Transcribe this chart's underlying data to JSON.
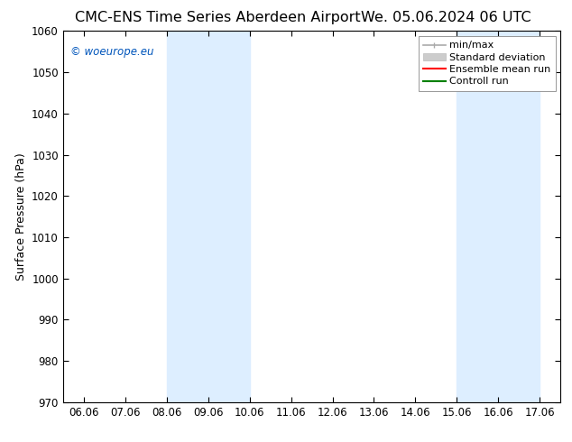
{
  "title_left": "CMC-ENS Time Series Aberdeen Airport",
  "title_right": "We. 05.06.2024 06 UTC",
  "ylabel": "Surface Pressure (hPa)",
  "ylim": [
    970,
    1060
  ],
  "yticks": [
    970,
    980,
    990,
    1000,
    1010,
    1020,
    1030,
    1040,
    1050,
    1060
  ],
  "xtick_labels": [
    "06.06",
    "07.06",
    "08.06",
    "09.06",
    "10.06",
    "11.06",
    "12.06",
    "13.06",
    "14.06",
    "15.06",
    "16.06",
    "17.06"
  ],
  "shaded_regions": [
    {
      "xmin": 2.0,
      "xmax": 4.0
    },
    {
      "xmin": 9.0,
      "xmax": 11.0
    }
  ],
  "shaded_color": "#ddeeff",
  "watermark": "© woeurope.eu",
  "watermark_color": "#0055bb",
  "legend_entries": [
    {
      "label": "min/max",
      "color": "#aaaaaa",
      "lw": 1.2
    },
    {
      "label": "Standard deviation",
      "color": "#cccccc",
      "lw": 8
    },
    {
      "label": "Ensemble mean run",
      "color": "red",
      "lw": 1.5
    },
    {
      "label": "Controll run",
      "color": "green",
      "lw": 1.5
    }
  ],
  "background_color": "#ffffff",
  "title_fontsize": 11.5,
  "tick_fontsize": 8.5,
  "ylabel_fontsize": 9,
  "watermark_fontsize": 8.5,
  "legend_fontsize": 8
}
